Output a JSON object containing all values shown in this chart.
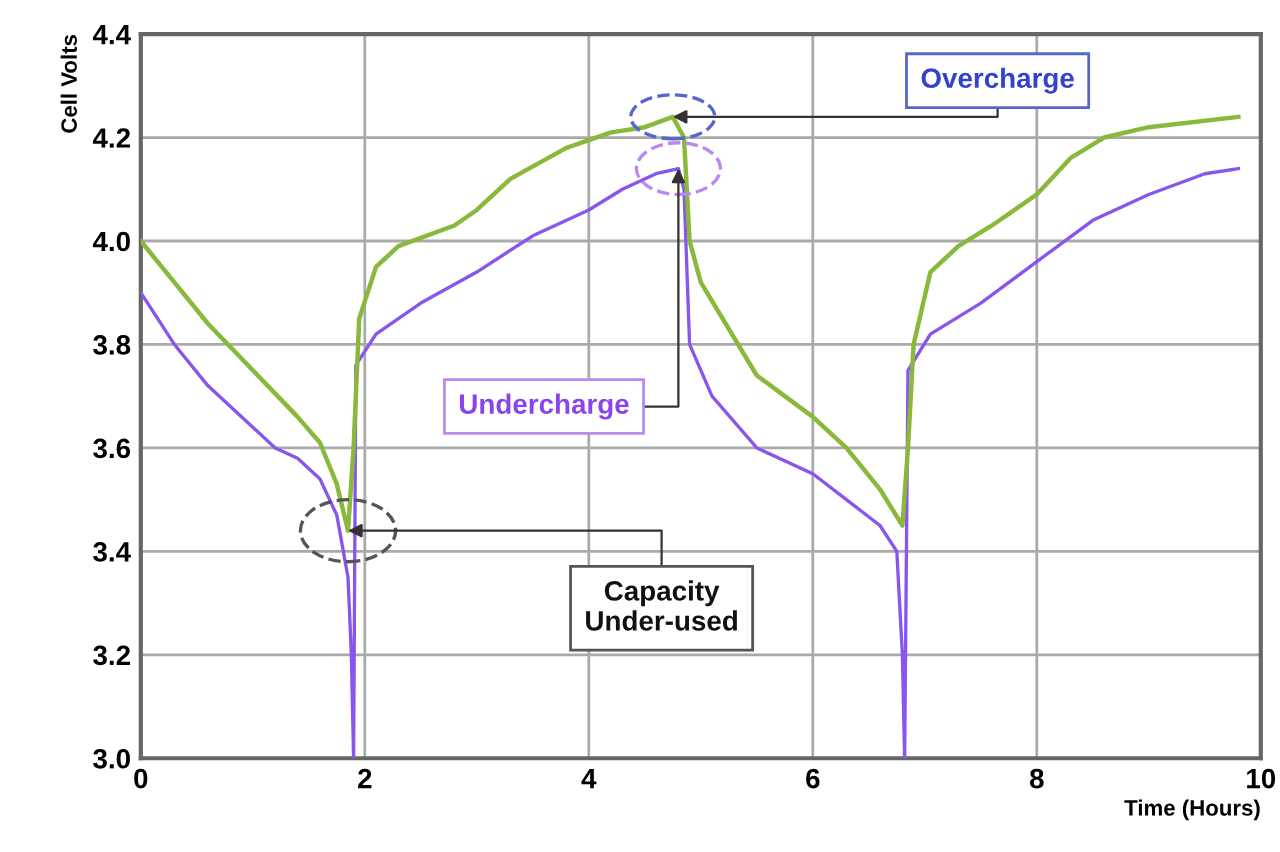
{
  "chart_data": {
    "type": "line",
    "xlabel": "Time (Hours)",
    "ylabel": "Cell Volts",
    "xlim": [
      0,
      10
    ],
    "ylim": [
      3.0,
      4.4
    ],
    "xticks": [
      0,
      2,
      4,
      6,
      8,
      10
    ],
    "yticks": [
      {
        "value": 3.0,
        "label": "3.0"
      },
      3.2,
      3.4,
      3.6,
      3.8,
      {
        "value": 4.0,
        "label": "4.0"
      },
      4.2,
      4.4
    ],
    "grid": true,
    "series": [
      {
        "color": "#8ab83a",
        "x": [
          0,
          0.3,
          0.6,
          1.0,
          1.4,
          1.6,
          1.75,
          1.85,
          1.9,
          1.95,
          2.1,
          2.3,
          2.8,
          3.0,
          3.3,
          3.8,
          4.2,
          4.5,
          4.75,
          4.85,
          4.9,
          5.0,
          5.5,
          6.0,
          6.3,
          6.6,
          6.8,
          6.85,
          6.9,
          7.05,
          7.3,
          7.6,
          8.0,
          8.3,
          8.6,
          9.0,
          9.8
        ],
        "values": [
          4.0,
          3.92,
          3.84,
          3.75,
          3.66,
          3.61,
          3.53,
          3.44,
          3.6,
          3.85,
          3.95,
          3.99,
          4.03,
          4.06,
          4.12,
          4.18,
          4.21,
          4.22,
          4.24,
          4.2,
          4.0,
          3.92,
          3.74,
          3.66,
          3.6,
          3.52,
          3.45,
          3.6,
          3.8,
          3.94,
          3.99,
          4.03,
          4.09,
          4.16,
          4.2,
          4.22,
          4.24
        ]
      },
      {
        "color": "#8855ee",
        "x": [
          0,
          0.3,
          0.6,
          1.0,
          1.2,
          1.4,
          1.6,
          1.75,
          1.85,
          1.88,
          1.9,
          1.92,
          2.1,
          2.5,
          3.0,
          3.5,
          4.0,
          4.3,
          4.6,
          4.8,
          4.85,
          4.9,
          5.1,
          5.5,
          6.0,
          6.3,
          6.6,
          6.75,
          6.8,
          6.82,
          6.85,
          7.05,
          7.5,
          8.0,
          8.5,
          9.0,
          9.5,
          9.8
        ],
        "values": [
          3.9,
          3.8,
          3.72,
          3.64,
          3.6,
          3.58,
          3.54,
          3.47,
          3.35,
          3.2,
          3.0,
          3.76,
          3.82,
          3.88,
          3.94,
          4.01,
          4.06,
          4.1,
          4.13,
          4.14,
          4.1,
          3.8,
          3.7,
          3.6,
          3.55,
          3.5,
          3.45,
          3.4,
          3.2,
          3.0,
          3.75,
          3.82,
          3.88,
          3.96,
          4.04,
          4.09,
          4.13,
          4.14
        ]
      }
    ],
    "annotations": [
      {
        "text": "Overcharge",
        "x": 4.75,
        "y": 4.24
      },
      {
        "text": "Undercharge",
        "x": 4.8,
        "y": 4.14
      },
      {
        "text": "Capacity\nUnder-used",
        "x": 1.85,
        "y": 3.44
      }
    ]
  }
}
